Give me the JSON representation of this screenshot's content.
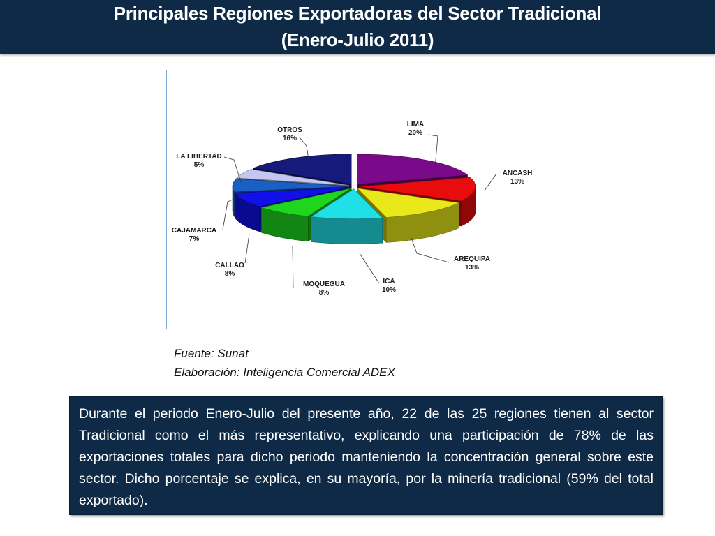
{
  "header": {
    "title_line1": "Principales Regiones Exportadoras del Sector Tradicional",
    "title_line2": "(Enero-Julio 2011)"
  },
  "chart_data": {
    "type": "pie",
    "style": "3d-exploded",
    "slices": [
      {
        "label": "LIMA",
        "pct_label": "20%",
        "value": 20,
        "color": "#7b0a8a"
      },
      {
        "label": "ANCASH",
        "pct_label": "13%",
        "value": 13,
        "color": "#e80c0c"
      },
      {
        "label": "AREQUIPA",
        "pct_label": "13%",
        "value": 13,
        "color": "#e8e81a"
      },
      {
        "label": "ICA",
        "pct_label": "10%",
        "value": 10,
        "color": "#1fe0e6"
      },
      {
        "label": "MOQUEGUA",
        "pct_label": "8%",
        "value": 8,
        "color": "#1fd61f"
      },
      {
        "label": "CALLAO",
        "pct_label": "8%",
        "value": 8,
        "color": "#1010e8"
      },
      {
        "label": "CAJAMARCA",
        "pct_label": "7%",
        "value": 7,
        "color": "#1a5fc4"
      },
      {
        "label": "LA LIBERTAD",
        "pct_label": "5%",
        "value": 5,
        "color": "#c6c6f2"
      },
      {
        "label": "OTROS",
        "pct_label": "16%",
        "value": 16,
        "color": "#161a7a"
      }
    ]
  },
  "source": {
    "fuente": "Fuente: Sunat",
    "elaboracion": "Elaboración: Inteligencia Comercial ADEX"
  },
  "note": {
    "text": "Durante el periodo Enero-Julio del presente año, 22 de las 25 regiones tienen al sector Tradicional como el más representativo, explicando una participación de 78% de las exportaciones totales para dicho periodo manteniendo la concentración general sobre este sector. Dicho porcentaje se explica, en su mayoría, por la minería tradicional (59% del total exportado)."
  }
}
